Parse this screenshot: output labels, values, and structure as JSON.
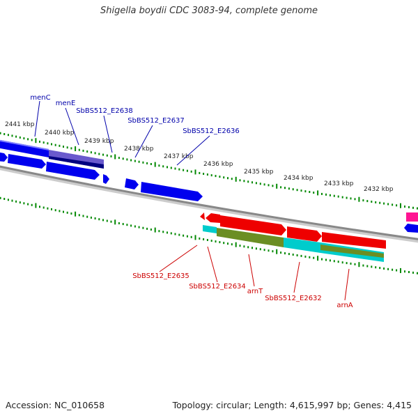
{
  "title": "Shigella boydii CDC 3083-94, complete genome",
  "footer": {
    "accession": "Accession: NC_010658",
    "summary": "Topology: circular; Length: 4,615,997 bp; Genes: 4,415"
  },
  "colors": {
    "forward_gene": "#0000ee",
    "reverse_gene": "#ee0000",
    "forward_label": "#0000aa",
    "reverse_label": "#cc0000",
    "ticks": "#008800",
    "backbone": "#888888",
    "cyan_feature": "#00cccc",
    "olive_feature": "#6b8e23",
    "magenta_feature": "#ff1493"
  },
  "kbp_ticks": [
    "2441 kbp",
    "2440 kbp",
    "2439 kbp",
    "2438 kbp",
    "2437 kbp",
    "2436 kbp",
    "2435 kbp",
    "2434 kbp",
    "2433 kbp",
    "2432 kbp"
  ],
  "forward_genes": [
    "menC",
    "menE",
    "SbBS512_E2638",
    "SbBS512_E2637",
    "SbBS512_E2636"
  ],
  "reverse_genes": [
    "SbBS512_E2635",
    "SbBS512_E2634",
    "arnT",
    "SbBS512_E2632",
    "arnA"
  ]
}
